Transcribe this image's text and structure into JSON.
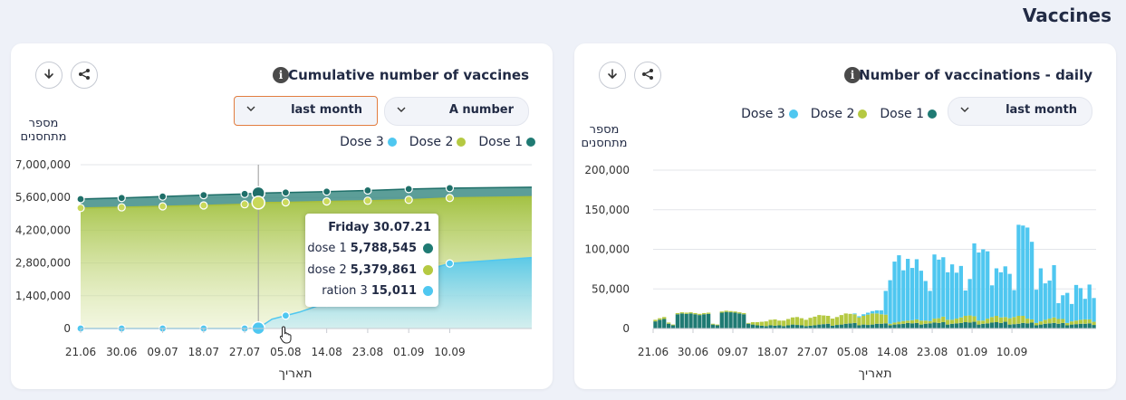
{
  "page": {
    "title": "Vaccines"
  },
  "colors": {
    "dose1": "#1f7a73",
    "dose2": "#b5c942",
    "dose3": "#4fc7f0",
    "accent": "#e27d40"
  },
  "left_card": {
    "title": "Cumulative number of vaccines",
    "download_icon": "download-icon",
    "share_icon": "share-icon",
    "info_icon": "info-icon",
    "period_dropdown": "last month",
    "mode_dropdown": "A number",
    "legend": [
      "Dose 3",
      "Dose 2",
      "Dose 1"
    ],
    "y_title_line1": "מספר",
    "y_title_line2": "מתחסנים",
    "x_title": "תאריך",
    "tooltip": {
      "title": "Friday 30.07.21",
      "rows": [
        {
          "label": "dose 1",
          "value": "5,788,545"
        },
        {
          "label": "dose 2",
          "value": "5,379,861"
        },
        {
          "label": "ration 3",
          "value": "15,011"
        }
      ]
    }
  },
  "right_card": {
    "title": "Number of vaccinations - daily",
    "download_icon": "download-icon",
    "share_icon": "share-icon",
    "info_icon": "info-icon",
    "period_dropdown": "last month",
    "legend": [
      "Dose 3",
      "Dose 2",
      "Dose 1"
    ],
    "y_title_line1": "מספר",
    "y_title_line2": "מתחסנים",
    "x_title": "תאריך"
  },
  "chart_data": [
    {
      "type": "area",
      "title": "Cumulative number of vaccines",
      "xlabel": "תאריך",
      "ylabel": "מספר מתחסנים",
      "ylim": [
        0,
        7000000
      ],
      "yticks": [
        "7,000,000",
        "5,600,000",
        "4,200,000",
        "2,800,000",
        "1,400,000",
        "0"
      ],
      "yticks_values": [
        7000000,
        5600000,
        4200000,
        2800000,
        1400000,
        0
      ],
      "xticks": [
        "21.06",
        "30.06",
        "09.07",
        "18.07",
        "27.07",
        "05.08",
        "14.08",
        "23.08",
        "01.09",
        "10.09"
      ],
      "x_days": {
        "start": 0,
        "end": 99,
        "tick_days": [
          0,
          9,
          18,
          27,
          36,
          45,
          54,
          63,
          72,
          81
        ]
      },
      "grid": true,
      "legend_position": "top-right",
      "series": [
        {
          "name": "Dose 1",
          "points": [
            [
              0,
              5530000
            ],
            [
              9,
              5580000
            ],
            [
              18,
              5640000
            ],
            [
              27,
              5700000
            ],
            [
              36,
              5750000
            ],
            [
              39,
              5788545
            ],
            [
              45,
              5810000
            ],
            [
              54,
              5850000
            ],
            [
              63,
              5900000
            ],
            [
              72,
              5960000
            ],
            [
              81,
              6000000
            ],
            [
              99,
              6040000
            ]
          ]
        },
        {
          "name": "Dose 2",
          "points": [
            [
              0,
              5150000
            ],
            [
              9,
              5180000
            ],
            [
              18,
              5220000
            ],
            [
              27,
              5260000
            ],
            [
              36,
              5310000
            ],
            [
              39,
              5379861
            ],
            [
              45,
              5390000
            ],
            [
              54,
              5430000
            ],
            [
              63,
              5460000
            ],
            [
              72,
              5500000
            ],
            [
              81,
              5580000
            ],
            [
              99,
              5630000
            ]
          ]
        },
        {
          "name": "Dose 3",
          "points": [
            [
              0,
              0
            ],
            [
              9,
              0
            ],
            [
              18,
              0
            ],
            [
              27,
              0
            ],
            [
              36,
              0
            ],
            [
              39,
              15011
            ],
            [
              42,
              400000
            ],
            [
              48,
              700000
            ],
            [
              54,
              1100000
            ],
            [
              63,
              1750000
            ],
            [
              72,
              2300000
            ],
            [
              81,
              2780000
            ],
            [
              99,
              3030000
            ]
          ]
        }
      ]
    },
    {
      "type": "bar",
      "title": "Number of vaccinations - daily",
      "xlabel": "תאריך",
      "ylabel": "מספר מתחסנים",
      "ylim": [
        0,
        200000
      ],
      "yticks": [
        "200,000",
        "150,000",
        "100,000",
        "50,000",
        "0"
      ],
      "yticks_values": [
        200000,
        150000,
        100000,
        50000,
        0
      ],
      "xticks": [
        "21.06",
        "30.06",
        "09.07",
        "18.07",
        "27.07",
        "05.08",
        "14.08",
        "23.08",
        "01.09",
        "10.09"
      ],
      "x_days": {
        "start": 0,
        "end": 99,
        "tick_days": [
          0,
          9,
          18,
          27,
          36,
          45,
          54,
          63,
          72,
          81
        ]
      },
      "grid": true,
      "legend_position": "top-right",
      "series": [
        {
          "name": "Dose 1",
          "values": [
            9000,
            11000,
            12000,
            6000,
            4000,
            18000,
            19000,
            18500,
            19000,
            18000,
            17000,
            18000,
            18500,
            5000,
            4000,
            20000,
            21000,
            20500,
            20000,
            19000,
            18000,
            6000,
            5000,
            4000,
            3500,
            3000,
            4000,
            3500,
            4000,
            3000,
            4000,
            5000,
            4500,
            4000,
            3000,
            3500,
            4000,
            5000,
            5500,
            6000,
            3500,
            4500,
            5000,
            6000,
            6500,
            7000,
            4000,
            5000,
            4500,
            5000,
            6000,
            6000,
            6500,
            4000,
            5000,
            5500,
            6000,
            7000,
            6500,
            7000,
            5000,
            6000,
            6500,
            7500,
            7000,
            8000,
            5000,
            6000,
            6500,
            7000,
            8000,
            7500,
            8500,
            5000,
            6000,
            6500,
            7500,
            8000,
            7000,
            8500,
            5000,
            5500,
            6000,
            7000,
            6500,
            7500,
            4000,
            5000,
            6000,
            6500,
            7000,
            6000,
            7000,
            4000,
            5000,
            5500,
            6000,
            6000,
            6500,
            4500
          ]
        },
        {
          "name": "Dose 2",
          "values": [
            2000,
            2000,
            2500,
            1500,
            1000,
            1500,
            1500,
            1500,
            1500,
            1500,
            1500,
            1500,
            1500,
            1000,
            1000,
            1500,
            1500,
            1500,
            1500,
            1500,
            1500,
            1000,
            3000,
            4000,
            5000,
            6000,
            7000,
            8000,
            6000,
            7000,
            8000,
            9000,
            10000,
            9000,
            8000,
            10000,
            11000,
            12000,
            11000,
            10000,
            9000,
            10000,
            12000,
            13000,
            12000,
            11000,
            10000,
            11000,
            13000,
            14000,
            13000,
            12000,
            11000,
            2000,
            2500,
            3000,
            3500,
            3000,
            4000,
            4500,
            5000,
            4000,
            3000,
            5000,
            6000,
            7000,
            6000,
            5000,
            6000,
            7000,
            8000,
            9000,
            7000,
            5000,
            4000,
            6000,
            7000,
            8000,
            7000,
            6000,
            8000,
            9000,
            10000,
            9000,
            6000,
            4000,
            3000,
            4000,
            5000,
            6000,
            7000,
            6000,
            5000,
            3000,
            4000,
            4500,
            5000,
            5500,
            5000,
            4000
          ]
        },
        {
          "name": "Dose 3",
          "values": [
            0,
            0,
            0,
            0,
            0,
            0,
            0,
            0,
            0,
            0,
            0,
            0,
            0,
            0,
            0,
            0,
            0,
            0,
            0,
            0,
            0,
            0,
            0,
            0,
            0,
            0,
            0,
            0,
            0,
            0,
            0,
            0,
            0,
            0,
            0,
            0,
            0,
            0,
            0,
            0,
            0,
            0,
            0,
            0,
            0,
            1000,
            1500,
            2000,
            2500,
            3000,
            4000,
            5000,
            30000,
            55000,
            77000,
            84000,
            64000,
            78000,
            66000,
            76000,
            63000,
            50000,
            38000,
            81000,
            74000,
            75000,
            60000,
            70000,
            58000,
            65000,
            32000,
            46000,
            92000,
            86000,
            90000,
            85000,
            40000,
            60000,
            57000,
            64000,
            56000,
            34000,
            115000,
            114000,
            115000,
            98000,
            42000,
            67000,
            46000,
            48000,
            66000,
            20000,
            30000,
            38000,
            22000,
            45000,
            40000,
            26000,
            44000,
            30000
          ]
        }
      ]
    }
  ]
}
